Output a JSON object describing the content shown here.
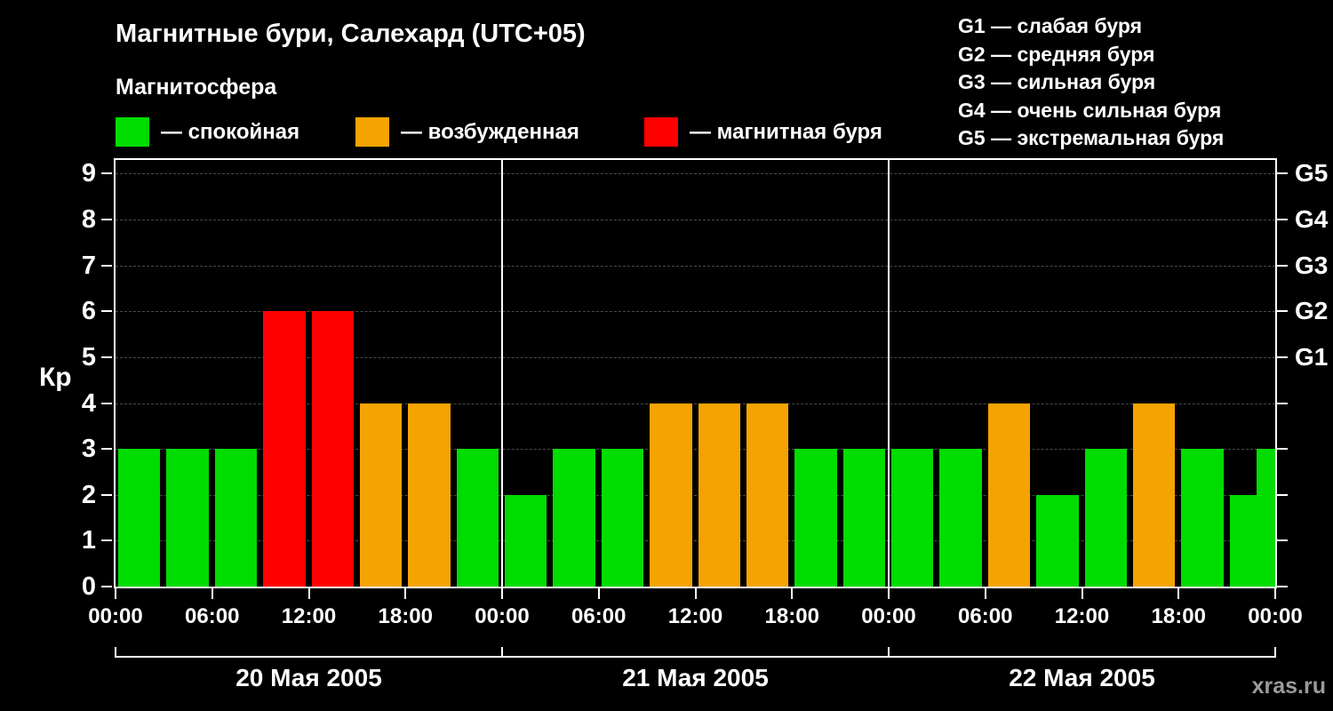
{
  "header": {
    "title": "Магнитные бури, Салехард (UTC+05)",
    "subtitle": "Магнитосфера"
  },
  "legend": {
    "items": [
      {
        "label": "— спокойная",
        "state": "quiet",
        "color": "#00dc00"
      },
      {
        "label": "— возбужденная",
        "state": "excited",
        "color": "#f5a300"
      },
      {
        "label": "— магнитная буря",
        "state": "storm",
        "color": "#ff0000"
      }
    ]
  },
  "g_legend": [
    "G1 — слабая буря",
    "G2 — средняя буря",
    "G3 — сильная буря",
    "G4 — очень сильная буря",
    "G5 — экстремальная буря"
  ],
  "watermark": "xras.ru",
  "chart_data": {
    "type": "bar",
    "title": "Магнитные бури, Салехард (UTC+05)",
    "ylabel": "Кр",
    "ylim": [
      0,
      9.3
    ],
    "y_ticks": [
      0,
      1,
      2,
      3,
      4,
      5,
      6,
      7,
      8,
      9
    ],
    "grid": "dashed-horizontal",
    "background": "#000000",
    "hours_per_bar": 3,
    "x_tick_labels": [
      "00:00",
      "06:00",
      "12:00",
      "18:00",
      "00:00",
      "06:00",
      "12:00",
      "18:00",
      "00:00",
      "06:00",
      "12:00",
      "18:00",
      "00:00"
    ],
    "right_axis_labels": [
      {
        "kp": 9,
        "label": "G5"
      },
      {
        "kp": 8,
        "label": "G4"
      },
      {
        "kp": 7,
        "label": "G3"
      },
      {
        "kp": 6,
        "label": "G2"
      },
      {
        "kp": 5,
        "label": "G1"
      }
    ],
    "state_colors": {
      "quiet": "#00dc00",
      "excited": "#f5a300",
      "storm": "#ff0000"
    },
    "days": [
      {
        "date": "20 Мая 2005",
        "kp_values": [
          3,
          3,
          3,
          6,
          6,
          4,
          4,
          3
        ],
        "states": [
          "quiet",
          "quiet",
          "quiet",
          "storm",
          "storm",
          "excited",
          "excited",
          "quiet"
        ]
      },
      {
        "date": "21 Мая 2005",
        "kp_values": [
          2,
          3,
          3,
          4,
          4,
          4,
          3,
          3
        ],
        "states": [
          "quiet",
          "quiet",
          "quiet",
          "excited",
          "excited",
          "excited",
          "quiet",
          "quiet"
        ]
      },
      {
        "date": "22 Мая 2005",
        "kp_values": [
          3,
          3,
          4,
          2,
          3,
          4,
          3,
          2
        ],
        "states": [
          "quiet",
          "quiet",
          "excited",
          "quiet",
          "quiet",
          "excited",
          "quiet",
          "quiet"
        ]
      }
    ],
    "trailing_partial_bar": {
      "kp": 3,
      "state": "quiet"
    }
  }
}
